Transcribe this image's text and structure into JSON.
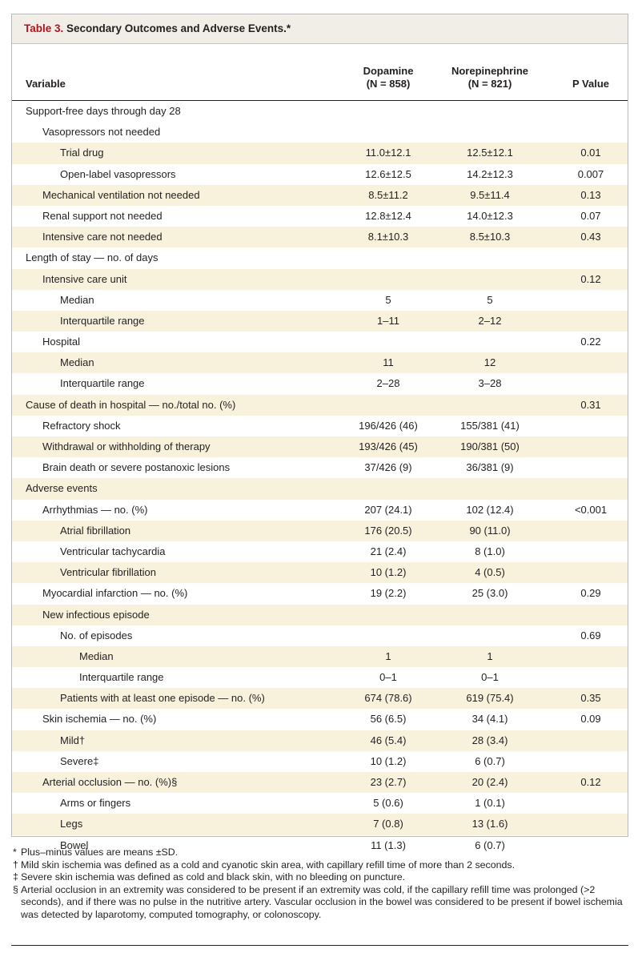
{
  "table": {
    "title_num": "Table 3.",
    "title_text": " Secondary Outcomes and Adverse Events.*",
    "headers": {
      "variable": "Variable",
      "dopamine": "Dopamine",
      "dopamine_n": "(N = 858)",
      "norepinephrine": "Norepinephrine",
      "norepinephrine_n": "(N = 821)",
      "p_value": "P Value"
    },
    "rows": [
      {
        "label": "Support-free days through day 28",
        "dop": "",
        "nor": "",
        "p": ""
      },
      {
        "label": "Vasopressors not needed",
        "dop": "",
        "nor": "",
        "p": ""
      },
      {
        "label": "Trial drug",
        "dop": "11.0±12.1",
        "nor": "12.5±12.1",
        "p": "0.01"
      },
      {
        "label": "Open-label vasopressors",
        "dop": "12.6±12.5",
        "nor": "14.2±12.3",
        "p": "0.007"
      },
      {
        "label": "Mechanical ventilation not needed",
        "dop": "8.5±11.2",
        "nor": "9.5±11.4",
        "p": "0.13"
      },
      {
        "label": "Renal support not needed",
        "dop": "12.8±12.4",
        "nor": "14.0±12.3",
        "p": "0.07"
      },
      {
        "label": "Intensive care not needed",
        "dop": "8.1±10.3",
        "nor": "8.5±10.3",
        "p": "0.43"
      },
      {
        "label": "Length of stay — no. of days",
        "dop": "",
        "nor": "",
        "p": ""
      },
      {
        "label": "Intensive care unit",
        "dop": "",
        "nor": "",
        "p": "0.12"
      },
      {
        "label": "Median",
        "dop": "5",
        "nor": "5",
        "p": ""
      },
      {
        "label": "Interquartile range",
        "dop": "1–11",
        "nor": "2–12",
        "p": ""
      },
      {
        "label": "Hospital",
        "dop": "",
        "nor": "",
        "p": "0.22"
      },
      {
        "label": "Median",
        "dop": "11",
        "nor": "12",
        "p": ""
      },
      {
        "label": "Interquartile range",
        "dop": "2–28",
        "nor": "3–28",
        "p": ""
      },
      {
        "label": "Cause of death in hospital — no./total no. (%)",
        "dop": "",
        "nor": "",
        "p": "0.31"
      },
      {
        "label": "Refractory shock",
        "dop": "196/426 (46)",
        "nor": "155/381 (41)",
        "p": ""
      },
      {
        "label": "Withdrawal or withholding of therapy",
        "dop": "193/426 (45)",
        "nor": "190/381 (50)",
        "p": ""
      },
      {
        "label": "Brain death or severe postanoxic lesions",
        "dop": "37/426 (9)",
        "nor": "36/381 (9)",
        "p": ""
      },
      {
        "label": "Adverse events",
        "dop": "",
        "nor": "",
        "p": ""
      },
      {
        "label": "Arrhythmias — no. (%)",
        "dop": "207 (24.1)",
        "nor": "102 (12.4)",
        "p": "<0.001"
      },
      {
        "label": "Atrial fibrillation",
        "dop": "176 (20.5)",
        "nor": "90 (11.0)",
        "p": ""
      },
      {
        "label": "Ventricular tachycardia",
        "dop": "21 (2.4)",
        "nor": "8 (1.0)",
        "p": ""
      },
      {
        "label": "Ventricular fibrillation",
        "dop": "10 (1.2)",
        "nor": "4 (0.5)",
        "p": ""
      },
      {
        "label": "Myocardial infarction — no. (%)",
        "dop": "19 (2.2)",
        "nor": "25 (3.0)",
        "p": "0.29"
      },
      {
        "label": "New infectious episode",
        "dop": "",
        "nor": "",
        "p": ""
      },
      {
        "label": "No. of episodes",
        "dop": "",
        "nor": "",
        "p": "0.69"
      },
      {
        "label": "Median",
        "dop": "1",
        "nor": "1",
        "p": ""
      },
      {
        "label": "Interquartile range",
        "dop": "0–1",
        "nor": "0–1",
        "p": ""
      },
      {
        "label": "Patients with at least one episode — no. (%)",
        "dop": "674 (78.6)",
        "nor": "619 (75.4)",
        "p": "0.35"
      },
      {
        "label": "Skin ischemia — no. (%)",
        "dop": "56 (6.5)",
        "nor": "34 (4.1)",
        "p": "0.09"
      },
      {
        "label": "Mild†",
        "dop": "46 (5.4)",
        "nor": "28 (3.4)",
        "p": ""
      },
      {
        "label": "Severe‡",
        "dop": "10 (1.2)",
        "nor": "6 (0.7)",
        "p": ""
      },
      {
        "label": "Arterial occlusion — no. (%)§",
        "dop": "23 (2.7)",
        "nor": "20 (2.4)",
        "p": "0.12"
      },
      {
        "label": "Arms or fingers",
        "dop": "5 (0.6)",
        "nor": "1 (0.1)",
        "p": ""
      },
      {
        "label": "Legs",
        "dop": "7 (0.8)",
        "nor": "13 (1.6)",
        "p": ""
      },
      {
        "label": "Bowel",
        "dop": "11 (1.3)",
        "nor": "6 (0.7)",
        "p": ""
      }
    ]
  },
  "footnotes": [
    {
      "mark": "*",
      "text": "Plus–minus values are means ±SD."
    },
    {
      "mark": "†",
      "text": "Mild skin ischemia was defined as a cold and cyanotic skin area, with capillary refill time of more than 2 seconds."
    },
    {
      "mark": "‡",
      "text": "Severe skin ischemia was defined as cold and black skin, with no bleeding on puncture."
    },
    {
      "mark": "§",
      "text": "Arterial occlusion in an extremity was considered to be present if an extremity was cold, if the capillary refill time was prolonged (>2 seconds), and if there was no pulse in the nutritive artery. Vascular occlusion in the bowel was considered to be present if bowel ischemia was detected by laparotomy, computed tomography, or colonoscopy."
    }
  ],
  "colors": {
    "title_accent": "#b5121b",
    "row_shade": "#f8f2dc",
    "title_bg": "#f1eee8"
  }
}
